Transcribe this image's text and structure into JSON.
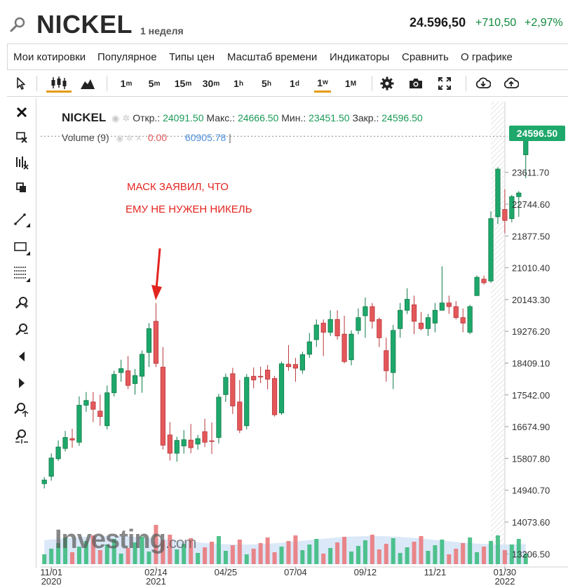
{
  "header": {
    "title": "NICKEL",
    "period": "1 неделя",
    "price": "24.596,50",
    "change": "+710,50",
    "change_pct": "+2,97%",
    "up_color": "#0f8a3c"
  },
  "menu": {
    "items": [
      "Мои котировки",
      "Популярное",
      "Типы цен",
      "Масштаб времени",
      "Индикаторы",
      "Сравнить",
      "О графике"
    ]
  },
  "toolbar": {
    "timeframes": [
      {
        "base": "1",
        "sup": "m"
      },
      {
        "base": "5",
        "sup": "m"
      },
      {
        "base": "15",
        "sup": "m"
      },
      {
        "base": "30",
        "sup": "m"
      },
      {
        "base": "1",
        "sup": "h"
      },
      {
        "base": "5",
        "sup": "h"
      },
      {
        "base": "1",
        "sup": "d"
      },
      {
        "base": "1",
        "sup": "w"
      },
      {
        "base": "1",
        "sup": "M"
      }
    ],
    "selected_timeframe": "1w",
    "accent_color": "#e69b12"
  },
  "legend": {
    "symbol": "NICKEL",
    "open_label": "Откр.:",
    "open": "24091.50",
    "high_label": "Макс.:",
    "high": "24666.50",
    "low_label": "Мин.:",
    "low": "23451.50",
    "close_label": "Закр.:",
    "close": "24596.50",
    "volume_label": "Volume (9)",
    "volume_value": "0.00",
    "volume_ma": "60905.78"
  },
  "annotation": {
    "line1": "МАСК ЗАЯВИЛ, ЧТО",
    "line2": "ЕМУ НЕ НУЖЕН НИКЕЛЬ",
    "color": "#e3241f"
  },
  "watermark": {
    "brand": "Investing",
    "suffix": ".com"
  },
  "chart_data": {
    "type": "candlestick",
    "title": "NICKEL",
    "y_ticks": [
      13206.5,
      14073.6,
      14940.7,
      15807.8,
      16674.9,
      17542.0,
      18409.1,
      19276.2,
      20143.3,
      21010.4,
      21877.5,
      22744.6,
      23611.7
    ],
    "y_tick_labels": [
      "13206.50",
      "14073.60",
      "14940.70",
      "15807.80",
      "16674.90",
      "17542.00",
      "18409.10",
      "19276.20",
      "20143.30",
      "21010.40",
      "21877.50",
      "22744.60",
      "23611.70"
    ],
    "ylim": [
      13206.5,
      24596.5
    ],
    "last_price_label": "24596.50",
    "x_ticks": [
      {
        "label": "11/01",
        "year": "2020",
        "index": 1
      },
      {
        "label": "02/14",
        "year": "2021",
        "index": 16
      },
      {
        "label": "04/25",
        "year": "",
        "index": 26
      },
      {
        "label": "07/04",
        "year": "",
        "index": 36
      },
      {
        "label": "09/12",
        "year": "",
        "index": 46
      },
      {
        "label": "11/21",
        "year": "",
        "index": 56
      },
      {
        "label": "01/30",
        "year": "2022",
        "index": 66
      }
    ],
    "candles": [
      [
        15120,
        15300,
        14990,
        15220
      ],
      [
        15320,
        15950,
        15200,
        15820
      ],
      [
        15800,
        16300,
        15740,
        16120
      ],
      [
        16080,
        16560,
        16000,
        16380
      ],
      [
        16350,
        16620,
        16100,
        16310
      ],
      [
        16250,
        17500,
        16150,
        17260
      ],
      [
        17260,
        17620,
        17080,
        17390
      ],
      [
        17350,
        17620,
        16800,
        17150
      ],
      [
        17100,
        17550,
        16700,
        16950
      ],
      [
        16700,
        17800,
        16600,
        17600
      ],
      [
        17600,
        18200,
        17500,
        18100
      ],
      [
        18150,
        18500,
        17900,
        18260
      ],
      [
        18200,
        18600,
        17700,
        17800
      ],
      [
        17850,
        18250,
        17550,
        18070
      ],
      [
        18050,
        18750,
        17600,
        18650
      ],
      [
        18700,
        19500,
        18300,
        19350
      ],
      [
        19550,
        20050,
        18300,
        18400
      ],
      [
        18300,
        18850,
        16050,
        16170
      ],
      [
        16450,
        16800,
        15750,
        15950
      ],
      [
        15950,
        16400,
        15720,
        16300
      ],
      [
        16150,
        16580,
        15940,
        16320
      ],
      [
        16310,
        16750,
        15950,
        16100
      ],
      [
        16200,
        16450,
        16050,
        16350
      ],
      [
        16540,
        16890,
        16120,
        16250
      ],
      [
        16290,
        16790,
        15930,
        16280
      ],
      [
        16380,
        17570,
        16220,
        17480
      ],
      [
        17550,
        18120,
        17350,
        18020
      ],
      [
        18120,
        18280,
        17020,
        17240
      ],
      [
        17350,
        17950,
        16500,
        16580
      ],
      [
        16700,
        18110,
        16600,
        18020
      ],
      [
        18050,
        18290,
        17720,
        17950
      ],
      [
        18050,
        18310,
        17860,
        18030
      ],
      [
        18220,
        18360,
        17690,
        17970
      ],
      [
        17990,
        18060,
        16950,
        17000
      ],
      [
        17050,
        18450,
        17000,
        18390
      ],
      [
        18380,
        18900,
        18200,
        18310
      ],
      [
        18370,
        18550,
        17900,
        18270
      ],
      [
        18220,
        18720,
        18120,
        18640
      ],
      [
        18650,
        19230,
        18550,
        18990
      ],
      [
        19050,
        19600,
        18850,
        19450
      ],
      [
        19500,
        19600,
        18600,
        19250
      ],
      [
        19250,
        19850,
        19150,
        19600
      ],
      [
        19600,
        19850,
        19050,
        19150
      ],
      [
        19200,
        19700,
        18400,
        18450
      ],
      [
        18500,
        19300,
        18350,
        19200
      ],
      [
        19300,
        19900,
        19200,
        19650
      ],
      [
        19700,
        20200,
        19100,
        19950
      ],
      [
        19950,
        20050,
        19350,
        19550
      ],
      [
        19600,
        19650,
        18850,
        19100
      ],
      [
        18750,
        19100,
        17900,
        18200
      ],
      [
        18150,
        19450,
        17700,
        19300
      ],
      [
        19350,
        20050,
        19100,
        19850
      ],
      [
        19850,
        20450,
        19750,
        20150
      ],
      [
        20000,
        20250,
        19200,
        19550
      ],
      [
        19500,
        19800,
        19300,
        19350
      ],
      [
        19350,
        19750,
        19150,
        19650
      ],
      [
        19500,
        20050,
        19250,
        19850
      ],
      [
        19850,
        21050,
        19850,
        20050
      ],
      [
        20050,
        20250,
        19750,
        19950
      ],
      [
        19950,
        20100,
        19600,
        19650
      ],
      [
        19650,
        19900,
        19250,
        19500
      ],
      [
        19250,
        20000,
        19200,
        19950
      ],
      [
        20250,
        20800,
        20250,
        20750
      ],
      [
        20700,
        20800,
        20550,
        20600
      ],
      [
        20650,
        22550,
        20600,
        22350
      ],
      [
        22400,
        23750,
        22200,
        23700
      ],
      [
        22600,
        23150,
        21950,
        22300
      ],
      [
        22350,
        23000,
        22250,
        22950
      ],
      [
        22950,
        23100,
        22400,
        23050
      ],
      [
        24091.5,
        24666.5,
        23451.5,
        24596.5
      ]
    ],
    "volume_ma_line": "area",
    "colors": {
      "up": "#1ea86b",
      "down": "#e4585a",
      "up_border": "#0d7a47",
      "down_border": "#b8353a"
    }
  }
}
